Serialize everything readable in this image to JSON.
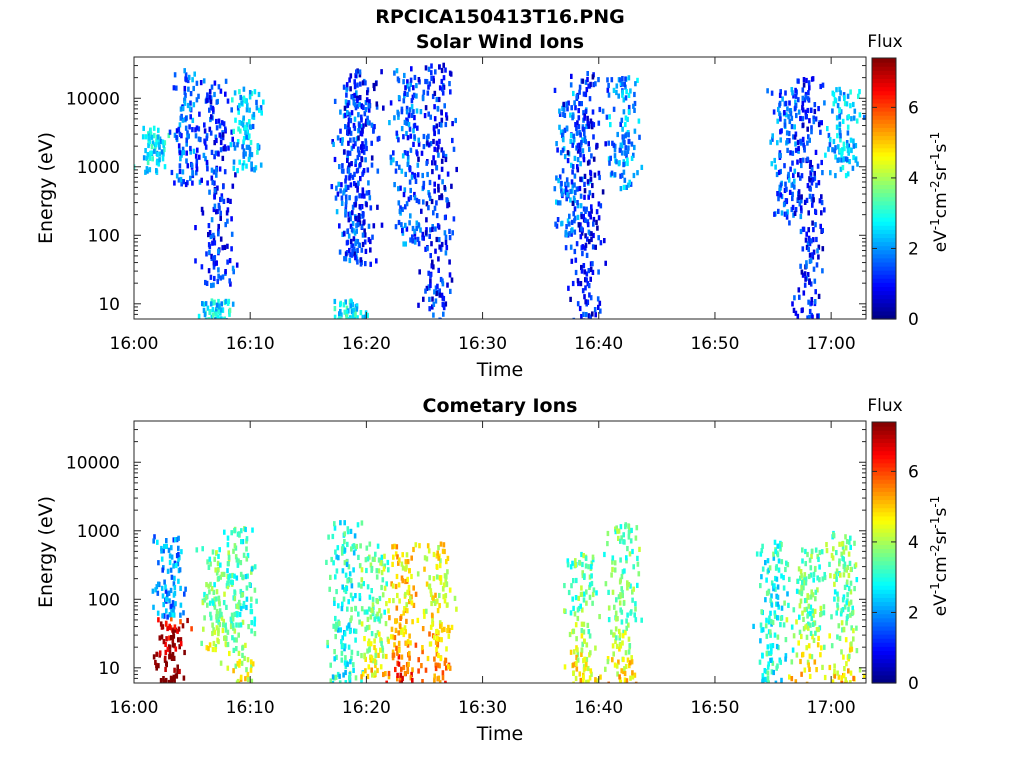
{
  "figure": {
    "title": "RPCICA150413T16.PNG"
  },
  "chart_data": [
    {
      "type": "heatmap",
      "title": "Solar Wind Ions",
      "xlabel": "Time",
      "ylabel": "Energy (eV)",
      "x_ticks": [
        "16:00",
        "16:10",
        "16:20",
        "16:30",
        "16:40",
        "16:50",
        "17:00"
      ],
      "xlim": [
        "16:00",
        "17:03"
      ],
      "y_scale": "log",
      "y_ticks": [
        10,
        100,
        1000,
        10000
      ],
      "y_tick_labels": [
        "10",
        "100",
        "1000",
        "10000"
      ],
      "ylim": [
        6,
        40000
      ],
      "colorbar": {
        "label": "Flux",
        "unit_label": "eV-1cm-2sr-1s-1",
        "ticks": [
          0,
          2,
          4,
          6
        ],
        "range": [
          0,
          7.4
        ],
        "colormap": "jet"
      },
      "bursts": [
        {
          "time": "16:01.5",
          "e_min": 900,
          "e_max": 4000,
          "flux": 2.6
        },
        {
          "time": "16:04.5",
          "e_min": 600,
          "e_max": 28000,
          "flux": 1.6
        },
        {
          "time": "16:07",
          "e_min": 20,
          "e_max": 20000,
          "flux": 1.2
        },
        {
          "time": "16:07",
          "e_min": 6,
          "e_max": 12,
          "flux": 2.6
        },
        {
          "time": "16:09.5",
          "e_min": 800,
          "e_max": 15000,
          "flux": 2.3
        },
        {
          "time": "16:18.5",
          "e_min": 40,
          "e_max": 20000,
          "flux": 1.5
        },
        {
          "time": "16:19.5",
          "e_min": 40,
          "e_max": 28000,
          "flux": 1.1
        },
        {
          "time": "16:18.5",
          "e_min": 6,
          "e_max": 12,
          "flux": 2.8
        },
        {
          "time": "16:23.5",
          "e_min": 80,
          "e_max": 30000,
          "flux": 1.6
        },
        {
          "time": "16:26",
          "e_min": 6,
          "e_max": 35000,
          "flux": 1.1
        },
        {
          "time": "16:37.5",
          "e_min": 100,
          "e_max": 15000,
          "flux": 1.8
        },
        {
          "time": "16:38.8",
          "e_min": 6,
          "e_max": 25000,
          "flux": 1.0
        },
        {
          "time": "16:42",
          "e_min": 500,
          "e_max": 22000,
          "flux": 2.0
        },
        {
          "time": "16:56",
          "e_min": 200,
          "e_max": 15000,
          "flux": 1.7
        },
        {
          "time": "16:58",
          "e_min": 6,
          "e_max": 22000,
          "flux": 1.1
        },
        {
          "time": "17:01",
          "e_min": 800,
          "e_max": 15000,
          "flux": 2.3
        }
      ]
    },
    {
      "type": "heatmap",
      "title": "Cometary Ions",
      "xlabel": "Time",
      "ylabel": "Energy (eV)",
      "x_ticks": [
        "16:00",
        "16:10",
        "16:20",
        "16:30",
        "16:40",
        "16:50",
        "17:00"
      ],
      "xlim": [
        "16:00",
        "17:03"
      ],
      "y_scale": "log",
      "y_ticks": [
        10,
        100,
        1000,
        10000
      ],
      "y_tick_labels": [
        "10",
        "100",
        "1000",
        "10000"
      ],
      "ylim": [
        6,
        40000
      ],
      "colorbar": {
        "label": "Flux",
        "unit_label": "eV-1cm-2sr-1s-1",
        "ticks": [
          0,
          2,
          4,
          6
        ],
        "range": [
          0,
          7.4
        ],
        "colormap": "jet"
      },
      "bursts": [
        {
          "time": "16:03",
          "e_min": 6,
          "e_max": 60,
          "flux": 6.5
        },
        {
          "time": "16:03",
          "e_min": 60,
          "e_max": 900,
          "flux": 2.0
        },
        {
          "time": "16:07",
          "e_min": 20,
          "e_max": 600,
          "flux": 3.5
        },
        {
          "time": "16:09",
          "e_min": 6,
          "e_max": 1200,
          "flux": 3.2
        },
        {
          "time": "16:18",
          "e_min": 6,
          "e_max": 1500,
          "flux": 3.0
        },
        {
          "time": "16:20.5",
          "e_min": 8,
          "e_max": 700,
          "flux": 3.5
        },
        {
          "time": "16:23",
          "e_min": 6,
          "e_max": 700,
          "flux": 4.8
        },
        {
          "time": "16:26",
          "e_min": 6,
          "e_max": 700,
          "flux": 4.5
        },
        {
          "time": "16:38.5",
          "e_min": 6,
          "e_max": 500,
          "flux": 3.5
        },
        {
          "time": "16:42",
          "e_min": 6,
          "e_max": 1400,
          "flux": 3.5
        },
        {
          "time": "16:55",
          "e_min": 6,
          "e_max": 800,
          "flux": 3.0
        },
        {
          "time": "16:58",
          "e_min": 6,
          "e_max": 600,
          "flux": 3.5
        },
        {
          "time": "17:01",
          "e_min": 6,
          "e_max": 1000,
          "flux": 3.5
        }
      ]
    }
  ]
}
